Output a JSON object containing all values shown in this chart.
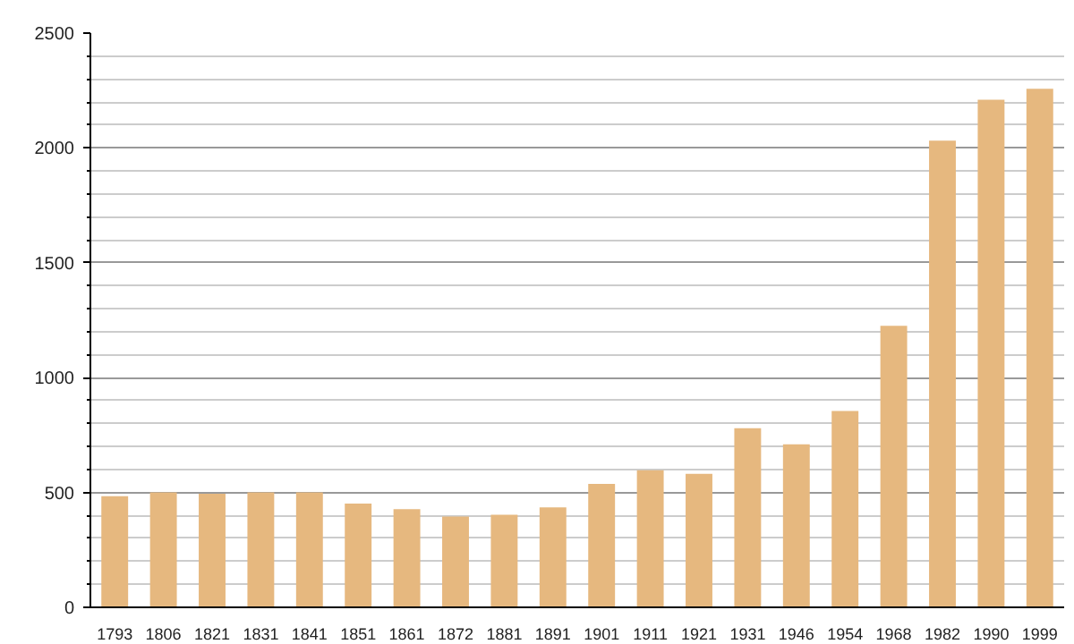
{
  "chart_data": {
    "type": "bar",
    "categories": [
      "1793",
      "1806",
      "1821",
      "1831",
      "1841",
      "1851",
      "1861",
      "1872",
      "1881",
      "1891",
      "1901",
      "1911",
      "1921",
      "1931",
      "1946",
      "1954",
      "1968",
      "1982",
      "1990",
      "1999"
    ],
    "values": [
      484,
      500,
      495,
      500,
      500,
      452,
      427,
      395,
      403,
      435,
      537,
      597,
      581,
      780,
      710,
      855,
      1226,
      2032,
      2210,
      2258
    ],
    "color": "#e6b87f",
    "ylim": [
      0,
      2500
    ],
    "yticks": [
      0,
      500,
      1000,
      1500,
      2000,
      2500
    ],
    "grid": "y"
  }
}
